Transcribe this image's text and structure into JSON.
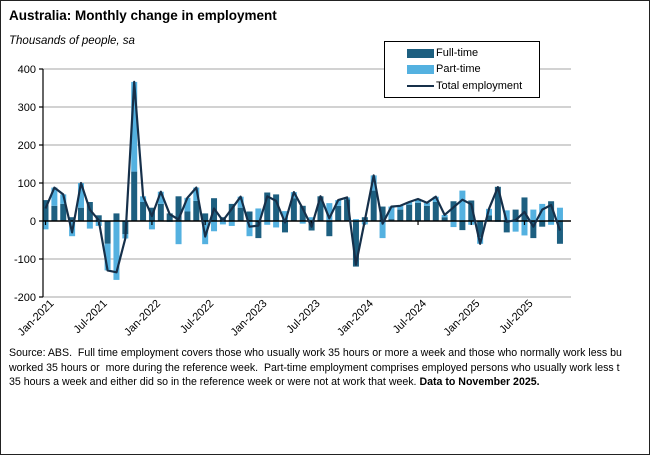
{
  "page": {
    "title": "Australia: Monthly change in employment",
    "subtitle": "Thousands of people, sa",
    "source_lines": [
      "Source: ABS.  Full time employment covers those who usually work 35 hours or more a week and those who normally work less bu",
      "worked 35 hours or  more during the reference week.  Part-time employment comprises employed persons who usually work less t",
      "35 hours a week and either did so in the reference week or were not at work that week."
    ],
    "source_bold": "Data to November 2025."
  },
  "chart_data": {
    "type": "bar",
    "subtype": "stacked-bars-with-total-line",
    "title": "Australia: Monthly change in employment",
    "ylabel": "Thousands of people, sa",
    "ylim": [
      -200,
      400
    ],
    "yticks": [
      400,
      300,
      200,
      100,
      0,
      -100,
      -200
    ],
    "xtick_labels": [
      "Jan-2021",
      "Jul-2021",
      "Jan-2022",
      "Jul-2022",
      "Jan-2023",
      "Jul-2023",
      "Jan-2024",
      "Jul-2024",
      "Jan-2025",
      "Jul-2025"
    ],
    "xtick_every_n_months": 6,
    "grid": true,
    "grid_color": "#a6a6a6",
    "axis_color": "#000000",
    "legend_position": "top-right",
    "categories": [
      "Jan-2021",
      "Feb-2021",
      "Mar-2021",
      "Apr-2021",
      "May-2021",
      "Jun-2021",
      "Jul-2021",
      "Aug-2021",
      "Sep-2021",
      "Oct-2021",
      "Nov-2021",
      "Dec-2021",
      "Jan-2022",
      "Feb-2022",
      "Mar-2022",
      "Apr-2022",
      "May-2022",
      "Jun-2022",
      "Jul-2022",
      "Aug-2022",
      "Sep-2022",
      "Oct-2022",
      "Nov-2022",
      "Dec-2022",
      "Jan-2023",
      "Feb-2023",
      "Mar-2023",
      "Apr-2023",
      "May-2023",
      "Jun-2023",
      "Jul-2023",
      "Aug-2023",
      "Sep-2023",
      "Oct-2023",
      "Nov-2023",
      "Dec-2023",
      "Jan-2024",
      "Feb-2024",
      "Mar-2024",
      "Apr-2024",
      "May-2024",
      "Jun-2024",
      "Jul-2024",
      "Aug-2024",
      "Sep-2024",
      "Oct-2024",
      "Nov-2024",
      "Dec-2024",
      "Jan-2025",
      "Feb-2025",
      "Mar-2025",
      "Apr-2025",
      "May-2025",
      "Jun-2025",
      "Jul-2025",
      "Aug-2025",
      "Sep-2025",
      "Oct-2025",
      "Nov-2025"
    ],
    "series": [
      {
        "name": "Full-time",
        "type": "bar",
        "color": "#1d5f80",
        "values": [
          55,
          40,
          45,
          10,
          35,
          50,
          15,
          -60,
          20,
          -35,
          130,
          50,
          35,
          45,
          20,
          65,
          25,
          53,
          20,
          60,
          10,
          45,
          35,
          25,
          -45,
          75,
          70,
          -30,
          60,
          40,
          -25,
          65,
          -40,
          40,
          57,
          -120,
          10,
          80,
          38,
          5,
          30,
          43,
          48,
          40,
          50,
          10,
          52,
          -24,
          54,
          -42,
          15,
          90,
          -30,
          30,
          62,
          -45,
          -15,
          52,
          -60
        ]
      },
      {
        "name": "Part-time",
        "type": "bar",
        "color": "#54b1e0",
        "values": [
          -22,
          48,
          25,
          -40,
          65,
          -20,
          -13,
          -70,
          -155,
          -11,
          236,
          15,
          -22,
          32,
          -2,
          -61,
          36,
          35,
          -61,
          -27,
          -9,
          -13,
          29,
          -40,
          33,
          -10,
          -17,
          26,
          16,
          -7,
          10,
          0,
          47,
          15,
          5,
          5,
          -9,
          40,
          -45,
          33,
          10,
          7,
          10,
          8,
          14,
          6,
          -16,
          80,
          -10,
          -18,
          17,
          -1,
          28,
          -28,
          -38,
          30,
          45,
          -10,
          35
        ]
      },
      {
        "name": "Total employment",
        "type": "line",
        "color": "#16304a",
        "values": [
          33,
          88,
          70,
          -30,
          100,
          30,
          2,
          -130,
          -135,
          -46,
          366,
          65,
          13,
          77,
          18,
          4,
          61,
          88,
          -41,
          33,
          1,
          32,
          64,
          -15,
          -12,
          65,
          53,
          -4,
          76,
          33,
          -15,
          65,
          7,
          55,
          62,
          -115,
          1,
          120,
          -7,
          38,
          40,
          50,
          58,
          48,
          64,
          16,
          36,
          56,
          44,
          -60,
          32,
          89,
          -2,
          2,
          24,
          -15,
          30,
          42,
          -25
        ]
      }
    ]
  }
}
